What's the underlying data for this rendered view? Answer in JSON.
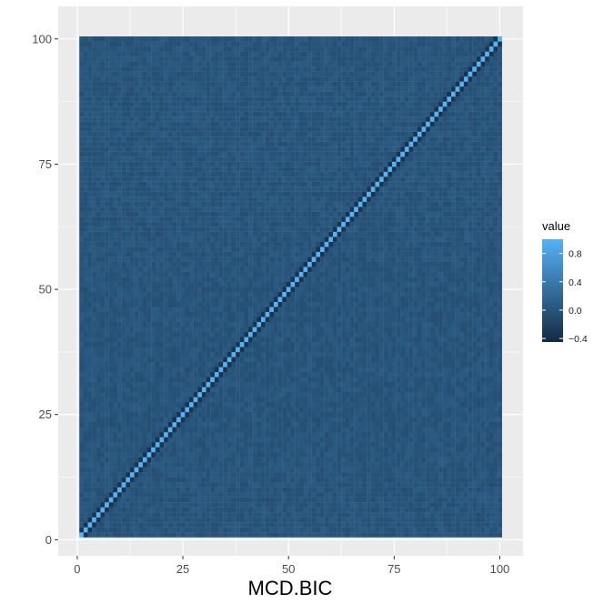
{
  "chart_data": {
    "type": "heatmap",
    "title": "",
    "xlabel": "MCD.BIC",
    "ylabel": "",
    "xlim": [
      -4.5,
      105.5
    ],
    "ylim": [
      -3.2,
      106.5
    ],
    "x_ticks": [
      0,
      25,
      50,
      75,
      100
    ],
    "y_ticks": [
      0,
      25,
      50,
      75,
      100
    ],
    "x_tick_labels": [
      "0",
      "25",
      "50",
      "75",
      "100"
    ],
    "y_tick_labels": [
      "0",
      "25",
      "50",
      "75",
      "100"
    ],
    "grid": true,
    "n": 100,
    "x_range": [
      1,
      100
    ],
    "y_range": [
      1,
      100
    ],
    "diagonal_value": 1.0,
    "off_diagonal_typical_value": 0.0,
    "near_diagonal_value": -0.35,
    "value_range": [
      -0.45,
      1.0
    ],
    "legend": {
      "title": "value",
      "position": "right",
      "ticks": [
        0.8,
        0.4,
        0.0,
        -0.4
      ],
      "tick_labels": [
        "0.8",
        "0.4",
        "0.0",
        "−0.4"
      ],
      "low_color": "#132B43",
      "high_color": "#56B1F7"
    },
    "panel_background": "#EBEBEB",
    "grid_color": "#FFFFFF"
  }
}
